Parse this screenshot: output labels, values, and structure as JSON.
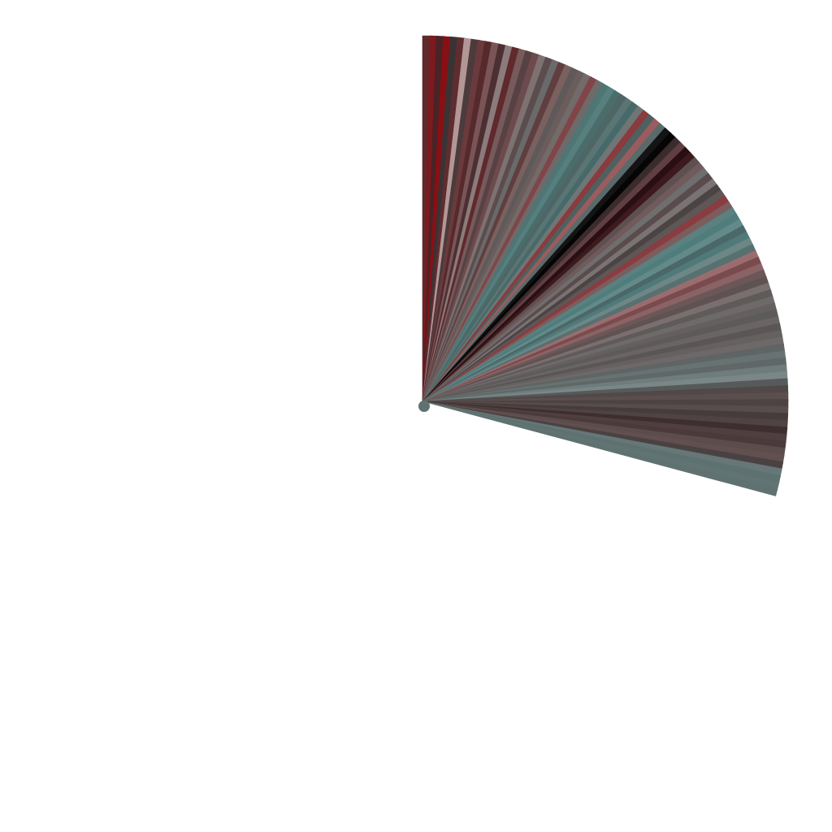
{
  "background": "#ffffff",
  "fan": {
    "start_angle_deg": 0,
    "end_angle_deg": 105,
    "corner": "rounded",
    "wedge_colors": [
      "#5e2a2c",
      "#7c1a1e",
      "#4a2326",
      "#8a0f14",
      "#3a3335",
      "#5f2d2f",
      "#b39797",
      "#4b3b3d",
      "#6b3a3d",
      "#562a2d",
      "#7a5558",
      "#4c2f31",
      "#8b7b7c",
      "#60292c",
      "#765a5c",
      "#574243",
      "#6d4a4c",
      "#7e7171",
      "#5b4d4e",
      "#6a6a6a",
      "#603e40",
      "#7b6060",
      "#5f5a5a",
      "#6c5d5d",
      "#736a6a",
      "#814548",
      "#6f6a6a",
      "#4d7675",
      "#567f7e",
      "#4a6d6c",
      "#4e6666",
      "#5a7574",
      "#466a6a",
      "#707575",
      "#8b3a3d",
      "#4f6060",
      "#9a5c5e",
      "#5a6a6a",
      "#141414",
      "#050505",
      "#3a2b2c",
      "#5f3f41",
      "#2a0f12",
      "#3d1a1d",
      "#5e5050",
      "#705a5b",
      "#6f6e6e",
      "#5a4b4c",
      "#7a7373",
      "#4b4445",
      "#5f5656",
      "#8a3c40",
      "#7b5d5e",
      "#5a8080",
      "#4f7d7c",
      "#638a89",
      "#4b6767",
      "#4f7a79",
      "#6d8686",
      "#577070",
      "#9b6c6e",
      "#7a4b4e",
      "#8a6365",
      "#6b5758",
      "#5e5252",
      "#7a6f6f",
      "#5f5b5b",
      "#6f6a6a",
      "#655f5f",
      "#5d5a5a",
      "#6a6464",
      "#5a5656",
      "#666161",
      "#6e6868",
      "#5f6464",
      "#677272",
      "#5f6767",
      "#6f7c7c",
      "#7b8787",
      "#575a5a",
      "#514848",
      "#5b4e4e",
      "#4d4343",
      "#574d4d",
      "#463c3c",
      "#4f4343",
      "#3e2e2f",
      "#503f40",
      "#4b3a3b",
      "#5d4c4c",
      "#624f50",
      "#4a4242",
      "#677676",
      "#5e7171",
      "#617473",
      "#5f7271"
    ]
  }
}
